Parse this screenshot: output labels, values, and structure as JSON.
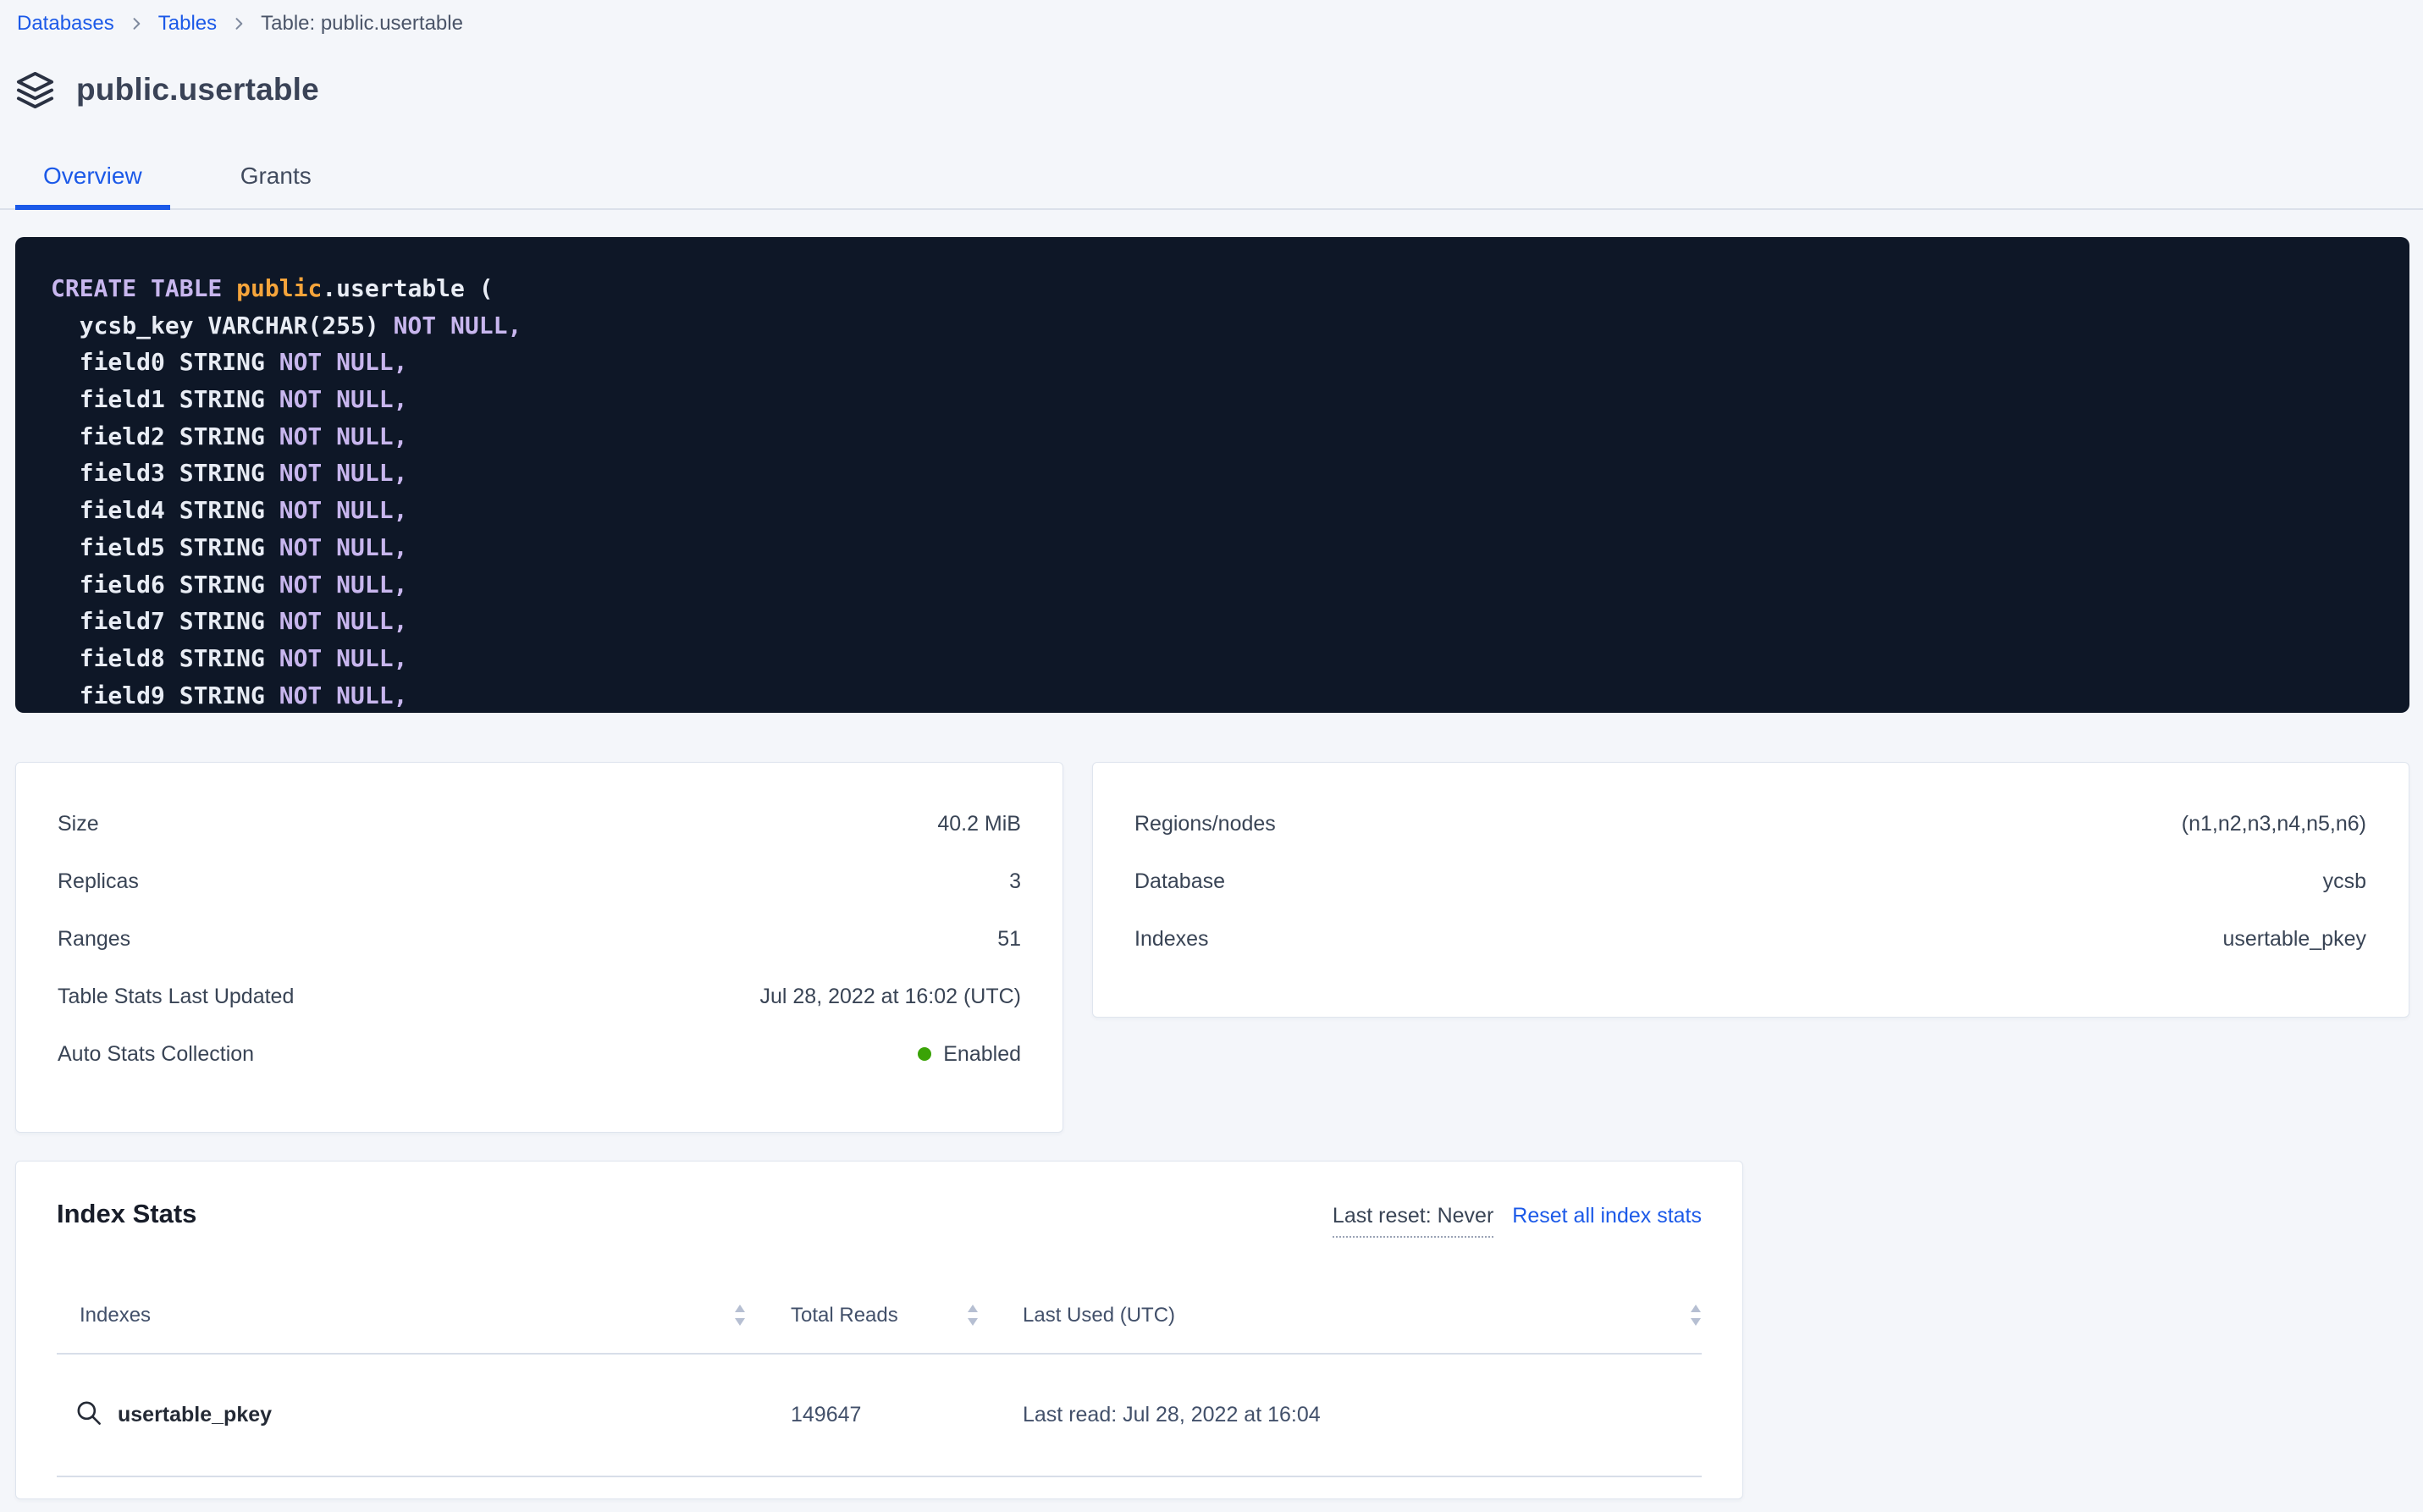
{
  "breadcrumb": {
    "items": [
      {
        "label": "Databases",
        "type": "link"
      },
      {
        "label": "Tables",
        "type": "link"
      },
      {
        "label": "Table: public.usertable",
        "type": "current"
      }
    ]
  },
  "header": {
    "title": "public.usertable",
    "icon": "stack-icon"
  },
  "tabs": [
    {
      "label": "Overview",
      "active": true
    },
    {
      "label": "Grants",
      "active": false
    }
  ],
  "sql": {
    "lines": [
      [
        {
          "t": "CREATE TABLE ",
          "c": "kw"
        },
        {
          "t": "public",
          "c": "db"
        },
        {
          "t": ".usertable (",
          "c": "plain"
        }
      ],
      [
        {
          "t": "  ycsb_key VARCHAR(255) ",
          "c": "plain"
        },
        {
          "t": "NOT NULL,",
          "c": "kw"
        }
      ],
      [
        {
          "t": "  field0 STRING ",
          "c": "plain"
        },
        {
          "t": "NOT NULL,",
          "c": "kw"
        }
      ],
      [
        {
          "t": "  field1 STRING ",
          "c": "plain"
        },
        {
          "t": "NOT NULL,",
          "c": "kw"
        }
      ],
      [
        {
          "t": "  field2 STRING ",
          "c": "plain"
        },
        {
          "t": "NOT NULL,",
          "c": "kw"
        }
      ],
      [
        {
          "t": "  field3 STRING ",
          "c": "plain"
        },
        {
          "t": "NOT NULL,",
          "c": "kw"
        }
      ],
      [
        {
          "t": "  field4 STRING ",
          "c": "plain"
        },
        {
          "t": "NOT NULL,",
          "c": "kw"
        }
      ],
      [
        {
          "t": "  field5 STRING ",
          "c": "plain"
        },
        {
          "t": "NOT NULL,",
          "c": "kw"
        }
      ],
      [
        {
          "t": "  field6 STRING ",
          "c": "plain"
        },
        {
          "t": "NOT NULL,",
          "c": "kw"
        }
      ],
      [
        {
          "t": "  field7 STRING ",
          "c": "plain"
        },
        {
          "t": "NOT NULL,",
          "c": "kw"
        }
      ],
      [
        {
          "t": "  field8 STRING ",
          "c": "plain"
        },
        {
          "t": "NOT NULL,",
          "c": "kw"
        }
      ],
      [
        {
          "t": "  field9 STRING ",
          "c": "plain"
        },
        {
          "t": "NOT NULL,",
          "c": "kw"
        }
      ]
    ]
  },
  "stats_left": {
    "rows": [
      {
        "label": "Size",
        "value": "40.2 MiB"
      },
      {
        "label": "Replicas",
        "value": "3"
      },
      {
        "label": "Ranges",
        "value": "51"
      },
      {
        "label": "Table Stats Last Updated",
        "value": "Jul 28, 2022 at 16:02 (UTC)"
      },
      {
        "label": "Auto Stats Collection",
        "value": "Enabled",
        "dot": true
      }
    ]
  },
  "stats_right": {
    "rows": [
      {
        "label": "Regions/nodes",
        "value": "(n1,n2,n3,n4,n5,n6)"
      },
      {
        "label": "Database",
        "value": "ycsb"
      },
      {
        "label": "Indexes",
        "value": "usertable_pkey"
      }
    ]
  },
  "index_stats": {
    "title": "Index Stats",
    "last_reset": "Last reset: Never",
    "reset_link": "Reset all index stats",
    "columns": [
      {
        "label": "Indexes",
        "sortable": true
      },
      {
        "label": "Total Reads",
        "sortable": true
      },
      {
        "label": "Last Used (UTC)",
        "sortable": true
      }
    ],
    "rows": [
      {
        "index_name": "usertable_pkey",
        "total_reads": "149647",
        "last_used": "Last read: Jul 28, 2022 at 16:04"
      }
    ]
  },
  "colors": {
    "accent_blue": "#1b59e8",
    "code_background": "#0e1727",
    "code_keyword": "#c8b6ee",
    "code_schema": "#f5a43b",
    "code_plain": "#e8ecf4",
    "status_green": "#3aa306",
    "page_background": "#f4f6fa"
  }
}
